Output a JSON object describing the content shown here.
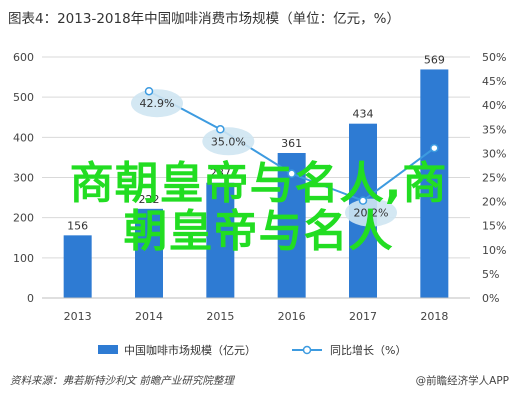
{
  "title": "图表4：2013-2018年中国咖啡消费市场规模（单位：亿元，%）",
  "footer": {
    "source": "资料来源：弗若斯特沙利文  前瞻产业研究院整理",
    "brand": "@前瞻经济学人APP"
  },
  "watermark": "商朝皇帝与名人,商朝皇帝与名人",
  "watermark_lines": [
    "商朝皇帝与名人,商",
    "朝皇帝与名人"
  ],
  "chart_data": {
    "type": "bar",
    "title": "图表4：2013-2018年中国咖啡消费市场规模（单位：亿元，%）",
    "categories": [
      "2013",
      "2014",
      "2015",
      "2016",
      "2017",
      "2018"
    ],
    "series": [
      {
        "name": "中国咖啡市场规模（亿元）",
        "type": "bar",
        "axis": "left",
        "values": [
          156,
          222,
          287,
          361,
          434,
          569
        ],
        "labels": [
          "156",
          "222",
          "287",
          "361",
          "434",
          "569"
        ],
        "color": "#2e7bd3"
      },
      {
        "name": "同比增长（%）",
        "type": "line",
        "axis": "right",
        "values": [
          null,
          42.9,
          35.0,
          25.8,
          20.2,
          31.1
        ],
        "labels": [
          "",
          "42.9%",
          "35.0%",
          "",
          "20.2%",
          ""
        ],
        "color": "#3d9be0"
      }
    ],
    "y_left": {
      "min": 0,
      "max": 600,
      "ticks": [
        "0",
        "100",
        "200",
        "300",
        "400",
        "500",
        "600"
      ]
    },
    "y_right": {
      "min": 0,
      "max": 50,
      "ticks": [
        "0%",
        "5%",
        "10%",
        "15%",
        "20%",
        "25%",
        "30%",
        "35%",
        "40%",
        "45%",
        "50%"
      ]
    },
    "grid": true,
    "legend": "bottom",
    "legend_entries": [
      "中国咖啡市场规模（亿元）",
      "同比增长（%）"
    ]
  }
}
